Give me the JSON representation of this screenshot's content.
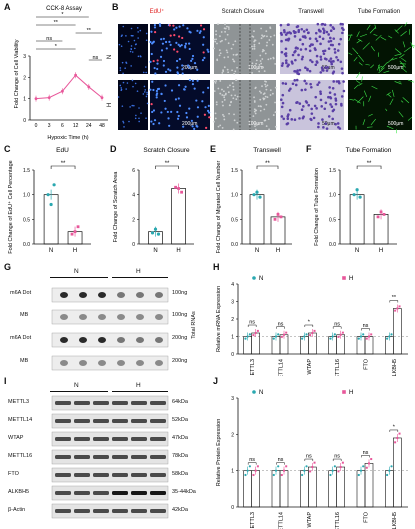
{
  "panels": {
    "A": {
      "letter": "A",
      "chart_data": {
        "type": "line",
        "title": "CCK-8 Assay",
        "xlabel": "Hypoxic Time (h)",
        "ylabel": "Fold Change of Cell Viability",
        "x": [
          "0",
          "3",
          "6",
          "12",
          "24",
          "48"
        ],
        "values": [
          1.0,
          1.05,
          1.35,
          2.1,
          1.55,
          1.05
        ],
        "ylim": [
          0,
          3
        ],
        "yticks": [
          "0",
          "1",
          "2",
          "3"
        ],
        "significance": [
          "*",
          "**",
          "**",
          "ns",
          "*",
          "**",
          "ns"
        ],
        "color": "#e8579a"
      }
    },
    "B": {
      "letter": "B",
      "headers": [
        "EdU⁺",
        "Scratch Closure",
        "Transwell",
        "Tube Formation"
      ],
      "row_labels": [
        "N",
        "H"
      ],
      "scale_bars": [
        "200μm",
        "100μm",
        "50μm",
        "500μm",
        "200μm",
        "100μm",
        "50μm",
        "500μm"
      ]
    },
    "C": {
      "letter": "C",
      "chart_data": {
        "type": "bar",
        "title": "EdU",
        "ylabel": "Fold Change of EdU⁺ Cell Percentage",
        "categories": [
          "N",
          "H"
        ],
        "values": [
          1.0,
          0.25
        ],
        "points": [
          [
            1.0,
            0.8,
            1.2
          ],
          [
            0.2,
            0.25,
            0.35
          ]
        ],
        "ylim": [
          0,
          1.5
        ],
        "yticks": [
          "0.0",
          "0.5",
          "1.0",
          "1.5"
        ],
        "sig": "**"
      }
    },
    "D": {
      "letter": "D",
      "chart_data": {
        "type": "bar",
        "title": "Scratch Closure",
        "ylabel": "Fold Change of Scratch Area",
        "categories": [
          "N",
          "H"
        ],
        "values": [
          1.0,
          4.5
        ],
        "points": [
          [
            0.9,
            1.2,
            0.8
          ],
          [
            4.6,
            4.5,
            4.2
          ]
        ],
        "ylim": [
          0,
          6
        ],
        "yticks": [
          "0",
          "2",
          "4",
          "6"
        ],
        "sig": "**"
      }
    },
    "E": {
      "letter": "E",
      "chart_data": {
        "type": "bar",
        "title": "Transwell",
        "ylabel": "Fold Change of Migrated Cell Number",
        "categories": [
          "N",
          "H"
        ],
        "values": [
          1.0,
          0.55
        ],
        "points": [
          [
            1.0,
            1.05,
            0.95
          ],
          [
            0.5,
            0.6,
            0.55
          ]
        ],
        "ylim": [
          0,
          1.5
        ],
        "yticks": [
          "0.0",
          "0.5",
          "1.0",
          "1.5"
        ],
        "sig": "**"
      }
    },
    "F": {
      "letter": "F",
      "chart_data": {
        "type": "bar",
        "title": "Tube Formation",
        "ylabel": "Fold Change of Tube Formation",
        "categories": [
          "N",
          "H"
        ],
        "values": [
          1.0,
          0.6
        ],
        "points": [
          [
            1.0,
            1.1,
            0.95
          ],
          [
            0.55,
            0.65,
            0.6
          ]
        ],
        "ylim": [
          0,
          1.5
        ],
        "yticks": [
          "0.0",
          "0.5",
          "1.0",
          "1.5"
        ],
        "sig": "**"
      }
    },
    "G": {
      "letter": "G",
      "groups": [
        "N",
        "H"
      ],
      "rows": [
        {
          "label": "m6A Dot",
          "amount": "100ng"
        },
        {
          "label": "MB",
          "amount": "100ng"
        },
        {
          "label": "m6A Dot",
          "amount": "200ng"
        },
        {
          "label": "MB",
          "amount": "200ng"
        }
      ],
      "side_label": "Total RNAs"
    },
    "H": {
      "letter": "H",
      "chart_data": {
        "type": "bar",
        "ylabel": "Relative mRNA Expression",
        "categories": [
          "METTL3",
          "METTL14",
          "WTAP",
          "METTL16",
          "FTO",
          "ALKBH5"
        ],
        "series": [
          {
            "name": "N",
            "values": [
              1.0,
              1.0,
              1.0,
              1.0,
              1.0,
              1.0
            ]
          },
          {
            "name": "H",
            "values": [
              1.2,
              1.1,
              1.2,
              1.1,
              1.0,
              2.6
            ]
          }
        ],
        "ylim": [
          0,
          4
        ],
        "yticks": [
          "0",
          "1",
          "2",
          "3",
          "4"
        ],
        "sig": [
          "ns",
          "ns",
          "*",
          "ns",
          "ns",
          "**"
        ],
        "colors": [
          "#2aa8b0",
          "#e8579a"
        ]
      }
    },
    "I": {
      "letter": "I",
      "groups": [
        "N",
        "H"
      ],
      "proteins": [
        {
          "name": "METTL3",
          "kda": "64kDa"
        },
        {
          "name": "METTL14",
          "kda": "52kDa"
        },
        {
          "name": "WTAP",
          "kda": "47kDa"
        },
        {
          "name": "METTL16",
          "kda": "78kDa"
        },
        {
          "name": "FTO",
          "kda": "58kDa"
        },
        {
          "name": "ALKBH5",
          "kda": "35-44kDa"
        },
        {
          "name": "β-Actin",
          "kda": "42kDa"
        }
      ]
    },
    "J": {
      "letter": "J",
      "chart_data": {
        "type": "bar",
        "ylabel": "Relative Protein Expression",
        "categories": [
          "METTL3",
          "METTL14",
          "WTAP",
          "METTL16",
          "FTO",
          "ALKBH5"
        ],
        "series": [
          {
            "name": "N",
            "values": [
              1.0,
              1.0,
              1.0,
              1.0,
              1.0,
              1.0
            ]
          },
          {
            "name": "H",
            "values": [
              1.0,
              1.0,
              1.1,
              1.1,
              1.2,
              1.9
            ]
          }
        ],
        "ylim": [
          0,
          3
        ],
        "yticks": [
          "0",
          "1",
          "2",
          "3"
        ],
        "sig": [
          "ns",
          "ns",
          "ns",
          "ns",
          "ns",
          "*"
        ],
        "colors": [
          "#2aa8b0",
          "#e8579a"
        ]
      }
    }
  }
}
